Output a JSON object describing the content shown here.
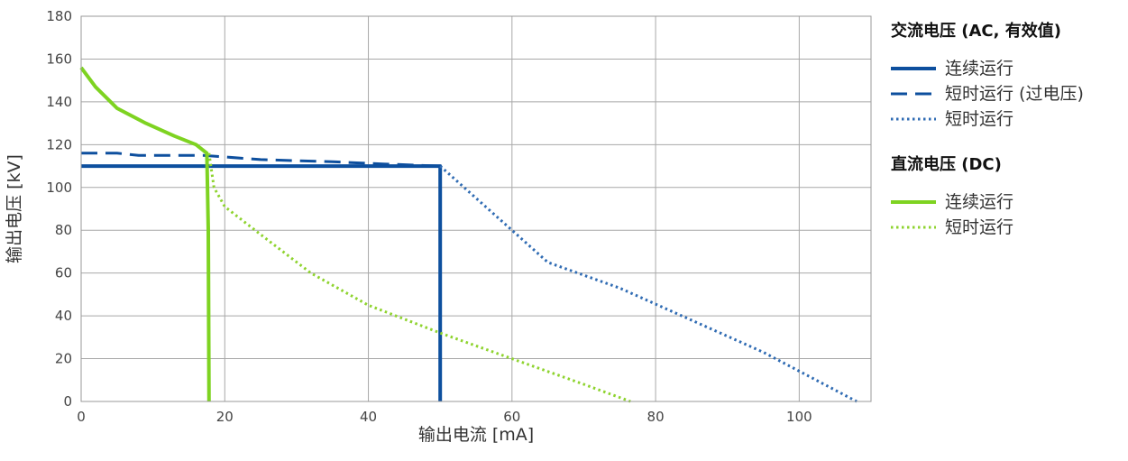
{
  "chart_data": {
    "type": "line",
    "xlabel": "输出电流 [mA]",
    "ylabel": "输出电压 [kV]",
    "xlim": [
      0,
      110
    ],
    "ylim": [
      0,
      180
    ],
    "xticks": [
      "0",
      "20",
      "40",
      "60",
      "80",
      "100"
    ],
    "yticks": [
      "0",
      "20",
      "40",
      "60",
      "80",
      "100",
      "120",
      "140",
      "160",
      "180"
    ],
    "grid": true,
    "legend_position": "right",
    "legend_groups": [
      {
        "title": "交流电压 (AC, 有效值)",
        "series_refs": [
          "ac_cont",
          "ac_over",
          "ac_short"
        ]
      },
      {
        "title": "直流电压 (DC)",
        "series_refs": [
          "dc_cont",
          "dc_short"
        ]
      }
    ],
    "series": [
      {
        "id": "ac_cont",
        "name": "连续运行",
        "color": "#0d4f9e",
        "style": "solid",
        "points": [
          [
            0,
            110
          ],
          [
            50,
            110
          ],
          [
            50,
            0
          ]
        ]
      },
      {
        "id": "ac_over",
        "name": "短时运行 (过电压)",
        "color": "#0d4f9e",
        "style": "dashed",
        "points": [
          [
            0,
            116
          ],
          [
            5,
            116
          ],
          [
            8,
            115
          ],
          [
            17,
            115
          ],
          [
            25,
            113
          ],
          [
            35,
            112
          ],
          [
            42,
            111
          ],
          [
            50,
            110
          ]
        ]
      },
      {
        "id": "ac_short",
        "name": "短时运行",
        "color": "#2f6bb3",
        "style": "dotted",
        "points": [
          [
            50,
            110
          ],
          [
            60,
            80
          ],
          [
            65,
            65
          ],
          [
            75,
            53
          ],
          [
            85,
            38
          ],
          [
            95,
            23
          ],
          [
            108,
            0
          ]
        ]
      },
      {
        "id": "dc_cont",
        "name": "连续运行",
        "color": "#7ed321",
        "style": "solid",
        "points": [
          [
            0,
            156
          ],
          [
            2,
            147
          ],
          [
            5,
            137
          ],
          [
            9,
            130
          ],
          [
            13,
            124
          ],
          [
            16,
            120
          ],
          [
            17.5,
            116
          ],
          [
            17.7,
            80
          ],
          [
            17.8,
            0
          ]
        ]
      },
      {
        "id": "dc_short",
        "name": "短时运行",
        "color": "#8ed32e",
        "style": "dotted",
        "points": [
          [
            17.8,
            116
          ],
          [
            18.5,
            100
          ],
          [
            20,
            91
          ],
          [
            25,
            78
          ],
          [
            32,
            60
          ],
          [
            40,
            45
          ],
          [
            50,
            32
          ],
          [
            60,
            20
          ],
          [
            70,
            8
          ],
          [
            76.5,
            0
          ]
        ]
      }
    ]
  }
}
